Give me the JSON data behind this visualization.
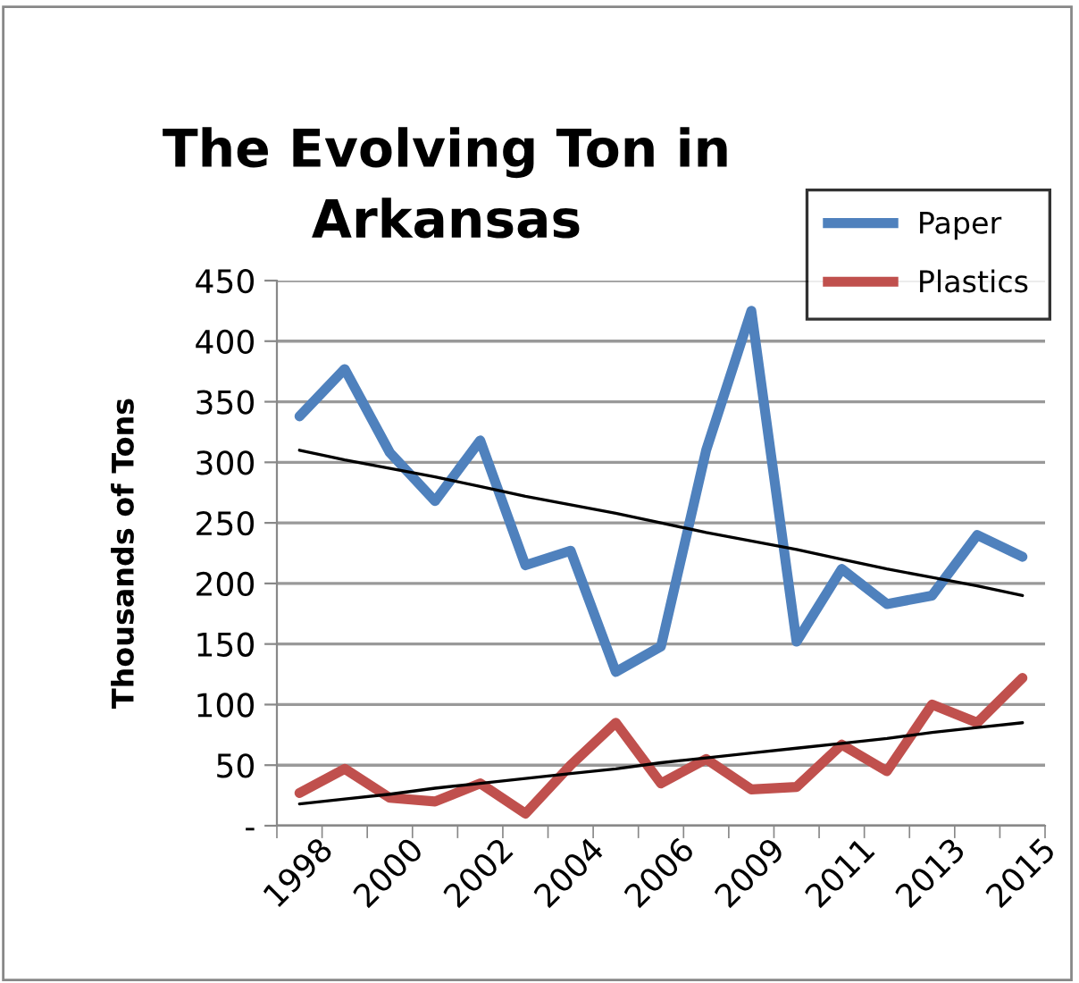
{
  "chart_data": {
    "type": "line",
    "title": "The Evolving Ton in\nArkansas",
    "ylabel": "Thousands of Tons",
    "categories": [
      "1998",
      null,
      "2000",
      null,
      "2002",
      null,
      "2004",
      null,
      "2006",
      null,
      "2009",
      null,
      "2011",
      null,
      "2013",
      null,
      "2015"
    ],
    "series": [
      {
        "name": "Paper",
        "color": "#4f81bd",
        "values": [
          338,
          377,
          308,
          268,
          318,
          215,
          227,
          127,
          148,
          310,
          425,
          152,
          212,
          183,
          190,
          240,
          222
        ]
      },
      {
        "name": "Plastics",
        "color": "#c0504d",
        "values": [
          27,
          47,
          23,
          20,
          35,
          10,
          50,
          85,
          35,
          55,
          30,
          32,
          67,
          45,
          100,
          85,
          122
        ]
      },
      {
        "color": "#000000",
        "values": [
          310,
          302,
          295,
          288,
          280,
          272,
          265,
          258,
          250,
          242,
          235,
          228,
          220,
          212,
          205,
          198,
          190
        ]
      },
      {
        "color": "#000000",
        "values": [
          18,
          22,
          26,
          31,
          35,
          39,
          43,
          47,
          52,
          56,
          60,
          64,
          68,
          72,
          77,
          81,
          85
        ]
      }
    ],
    "ylim": [
      0,
      450
    ],
    "yticks": [
      {
        "value": 0,
        "label": "-"
      },
      50,
      100,
      150,
      200,
      250,
      300,
      350,
      400,
      450
    ],
    "grid": "y",
    "legend": "top right"
  }
}
